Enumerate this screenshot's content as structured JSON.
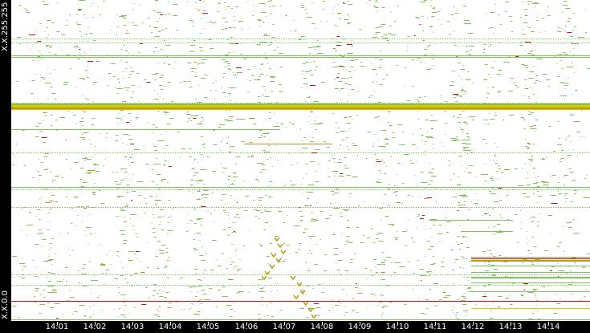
{
  "y_axis": {
    "top_label": "X.X.255.255",
    "bottom_label": "X.X.0.0"
  },
  "x_axis": {
    "ticks": [
      "14:01",
      "14:02",
      "14:03",
      "14:04",
      "14:05",
      "14:06",
      "14:07",
      "14:08",
      "14:09",
      "14:10",
      "14:11",
      "14:12",
      "14:13",
      "14:14"
    ]
  },
  "colors": {
    "background": "#000000",
    "plot_background": "#ffffff",
    "green": "#7ec35a",
    "olive": "#b59a17",
    "yellow": "#e0c400",
    "red": "#cc1010",
    "orange": "#e07a10",
    "axis_text": "#ffffff"
  }
}
